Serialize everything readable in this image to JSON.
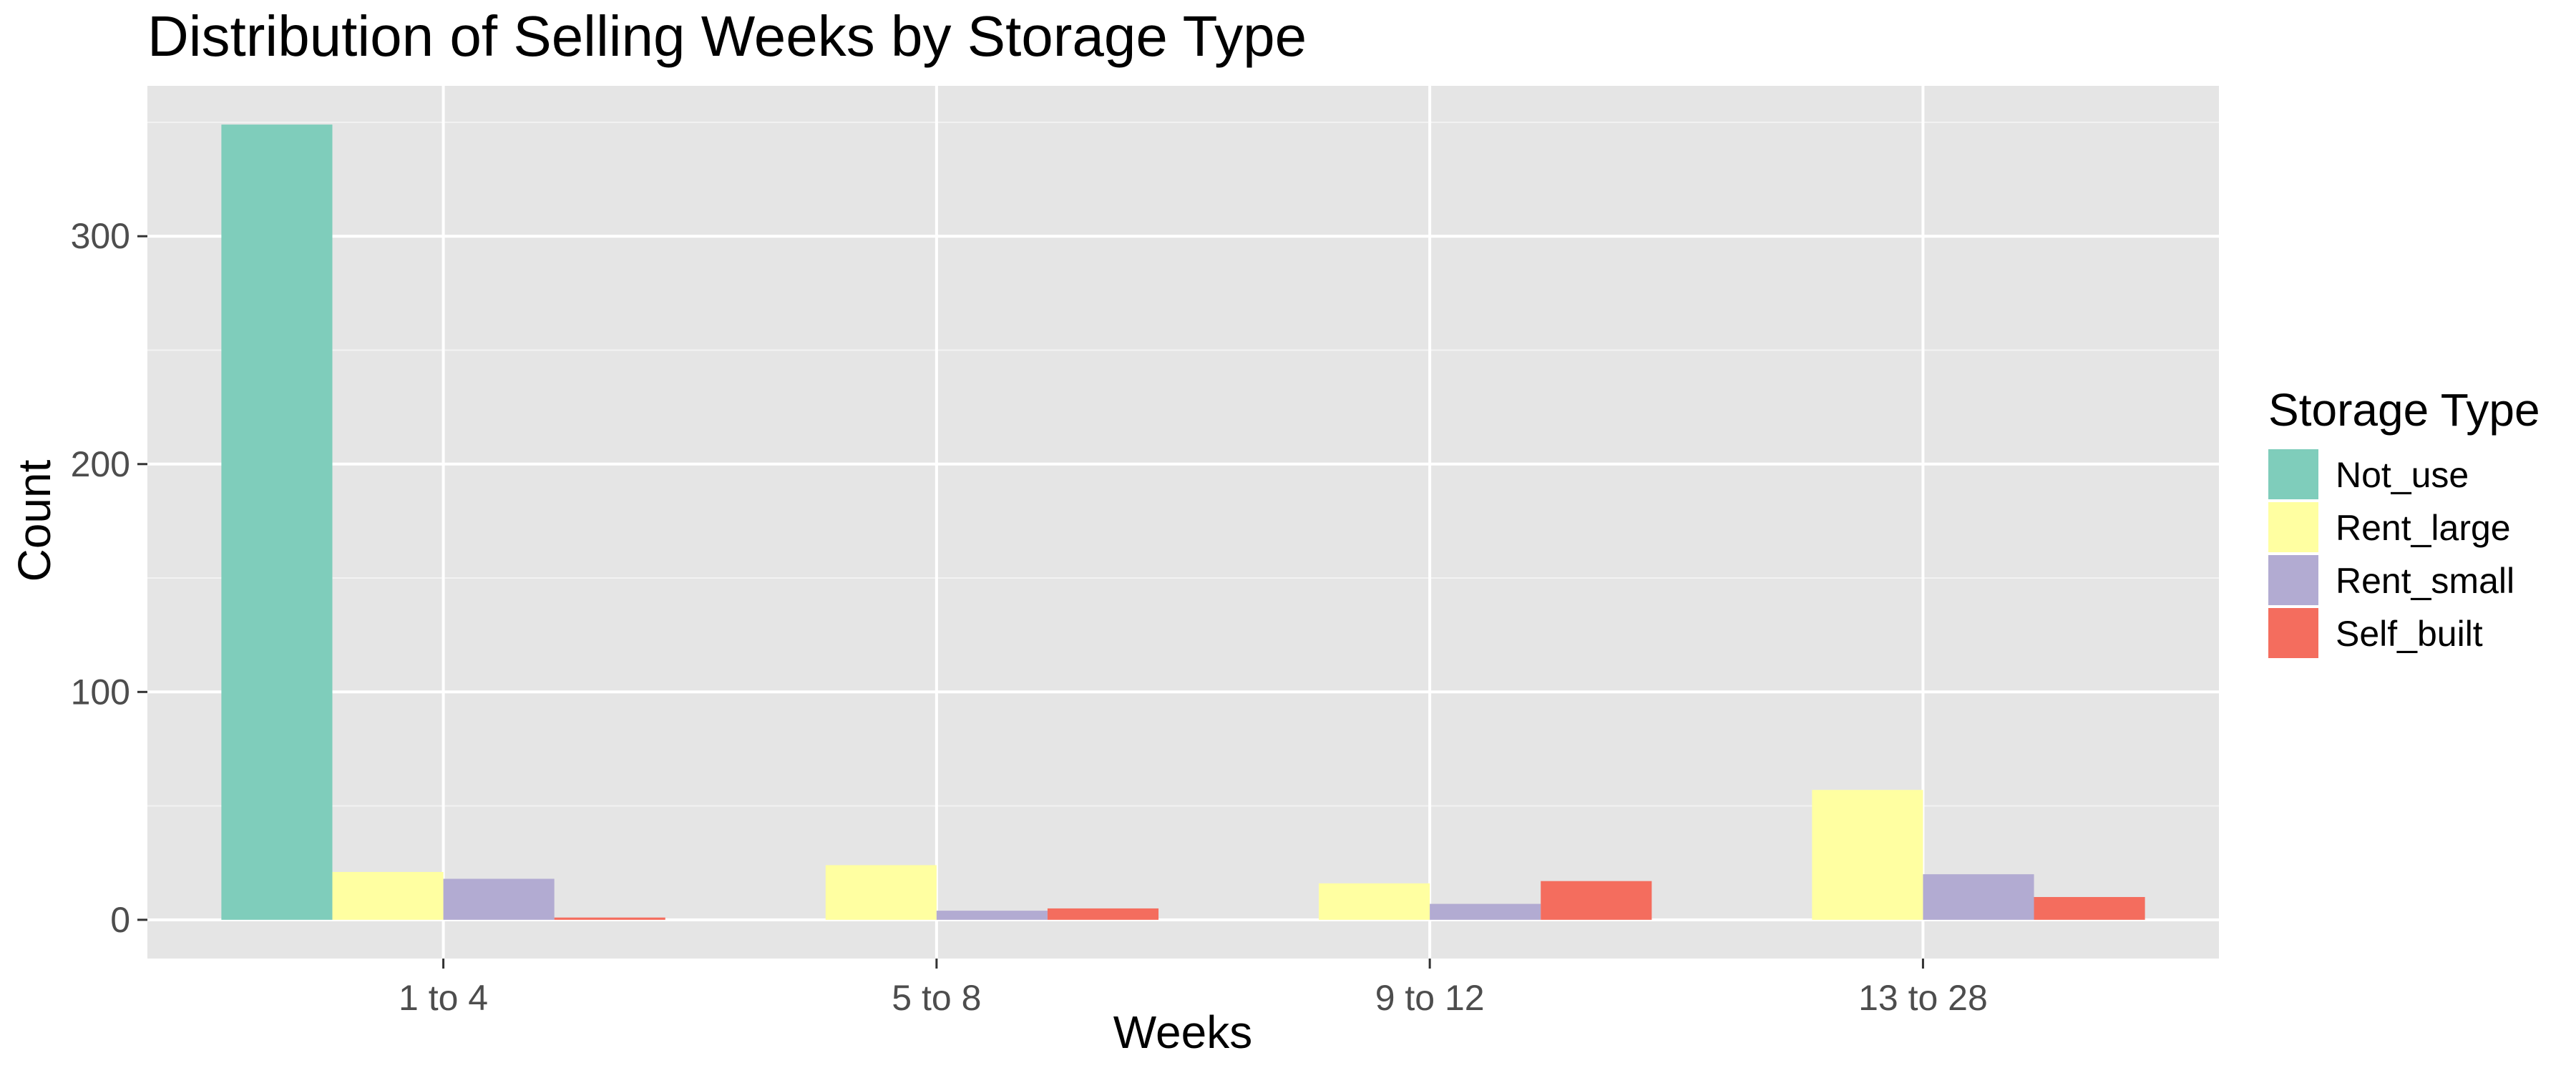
{
  "chart_data": {
    "type": "bar",
    "title": "Distribution of Selling Weeks by Storage Type",
    "xlabel": "Weeks",
    "ylabel": "Count",
    "categories": [
      "1 to 4",
      "5 to 8",
      "9 to 12",
      "13 to 28"
    ],
    "series": [
      {
        "name": "Not_use",
        "color": "#7fcdbb",
        "values": [
          349,
          0,
          0,
          0
        ]
      },
      {
        "name": "Rent_large",
        "color": "#ffffa1",
        "values": [
          21,
          24,
          16,
          57
        ]
      },
      {
        "name": "Rent_small",
        "color": "#b2abd2",
        "values": [
          18,
          4,
          7,
          20
        ]
      },
      {
        "name": "Self_built",
        "color": "#f46d5e",
        "values": [
          1,
          5,
          17,
          10
        ]
      }
    ],
    "ylim": [
      -17,
      366
    ],
    "yticks": [
      0,
      100,
      200,
      300
    ],
    "grid": true,
    "panel_background": "#e5e5e5",
    "legend": {
      "title": "Storage Type",
      "position": "right"
    }
  }
}
